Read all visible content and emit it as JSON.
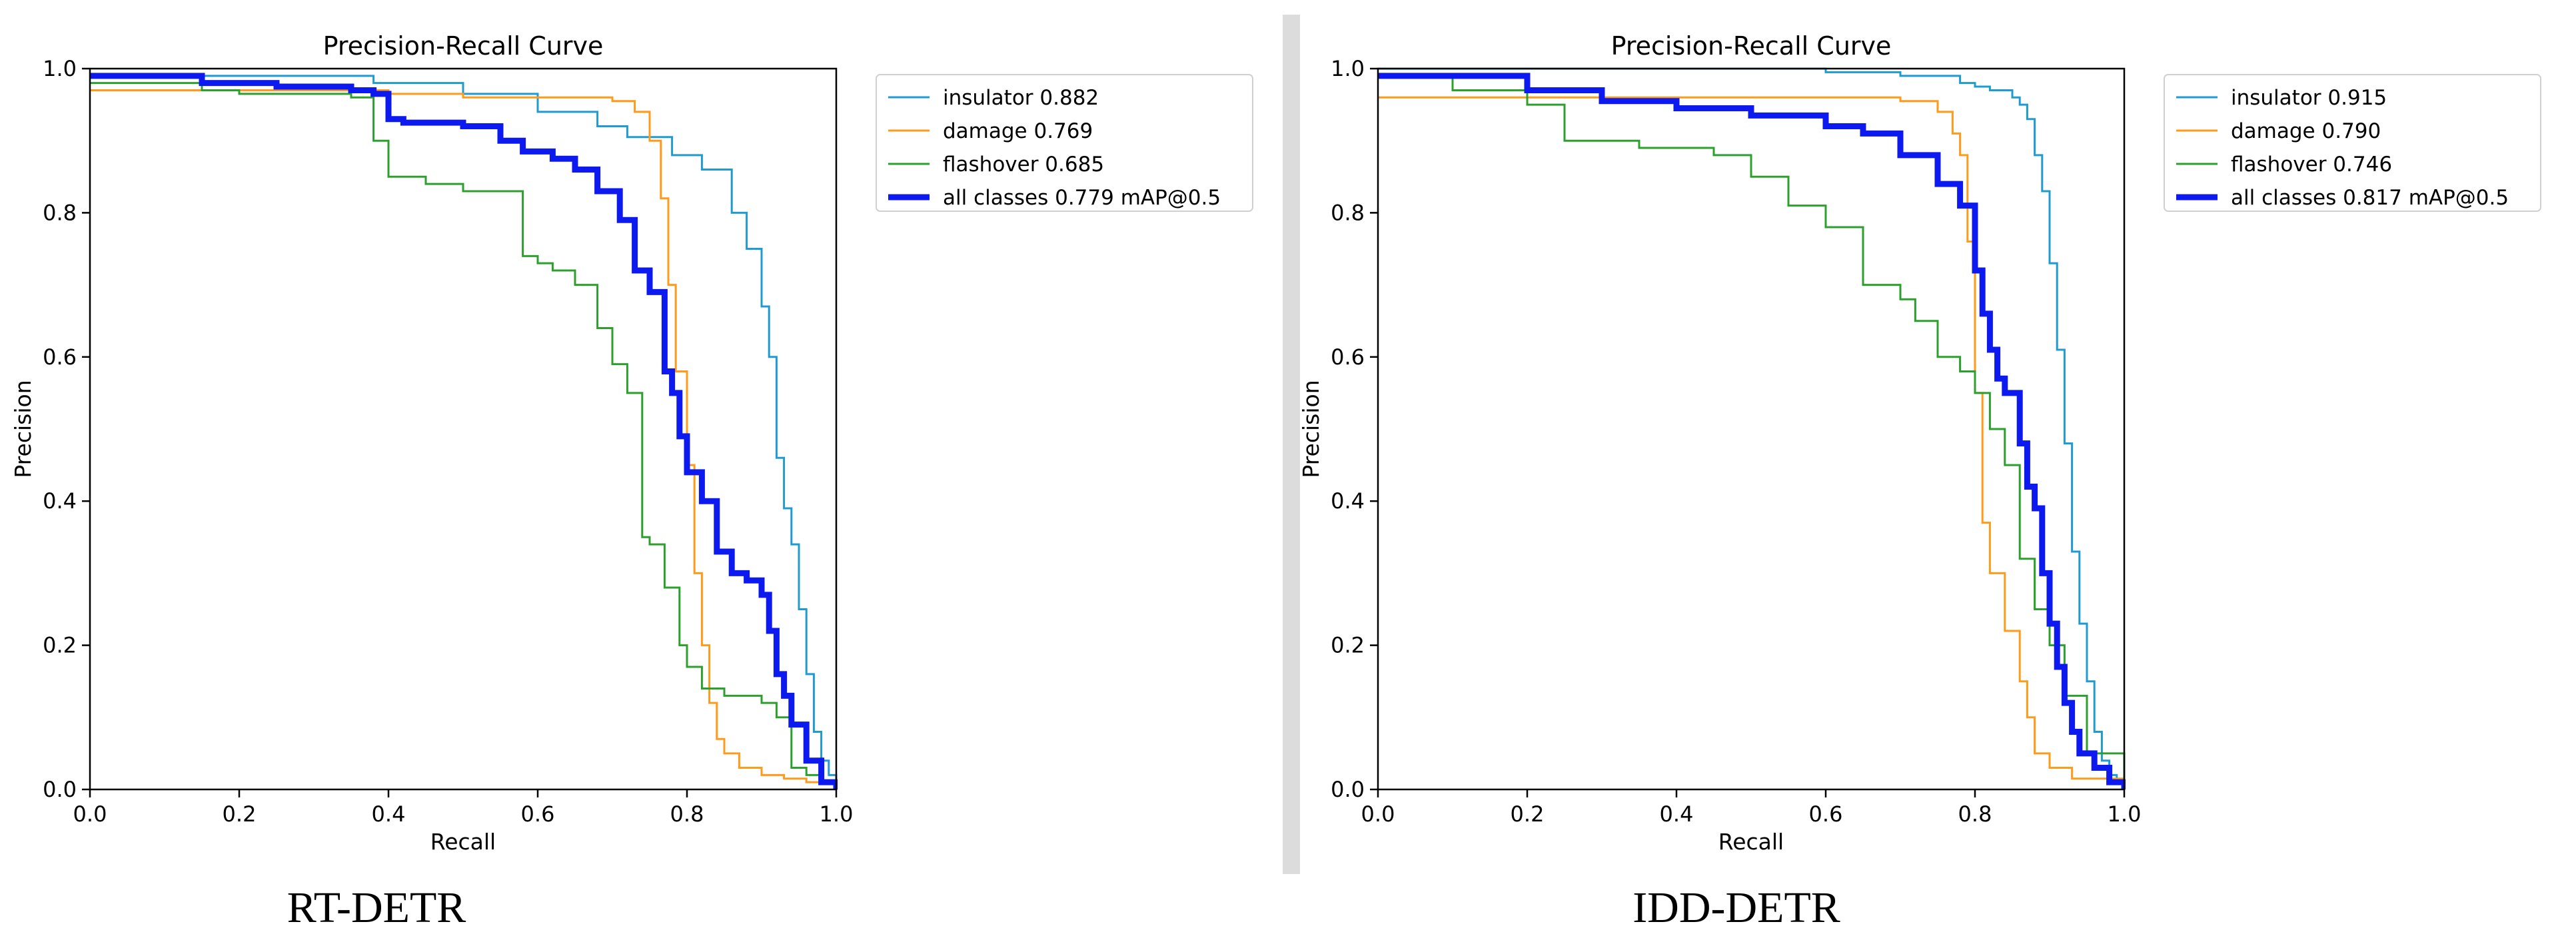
{
  "chart_data": [
    {
      "type": "line",
      "title": "Precision-Recall Curve",
      "xlabel": "Recall",
      "ylabel": "Precision",
      "xlim": [
        0,
        1
      ],
      "ylim": [
        0,
        1
      ],
      "xticks": [
        "0.0",
        "0.2",
        "0.4",
        "0.6",
        "0.8",
        "1.0"
      ],
      "yticks": [
        "0.0",
        "0.2",
        "0.4",
        "0.6",
        "0.8",
        "1.0"
      ],
      "grid": false,
      "legend_position": "outside top-right",
      "caption": "RT-DETR",
      "series": [
        {
          "name": "insulator 0.882",
          "color": "#1f9bd2",
          "linewidth": "thin",
          "x": [
            0,
            0.38,
            0.5,
            0.6,
            0.68,
            0.72,
            0.78,
            0.82,
            0.86,
            0.88,
            0.9,
            0.91,
            0.92,
            0.93,
            0.94,
            0.95,
            0.96,
            0.97,
            0.98,
            0.99,
            1.0
          ],
          "y": [
            0.99,
            0.98,
            0.965,
            0.94,
            0.92,
            0.905,
            0.88,
            0.86,
            0.8,
            0.75,
            0.67,
            0.6,
            0.46,
            0.39,
            0.34,
            0.25,
            0.16,
            0.08,
            0.04,
            0.02,
            0.0
          ]
        },
        {
          "name": "damage 0.769",
          "color": "#ff9a1a",
          "linewidth": "thin",
          "x": [
            0,
            0.15,
            0.4,
            0.5,
            0.6,
            0.65,
            0.7,
            0.73,
            0.75,
            0.765,
            0.775,
            0.785,
            0.8,
            0.81,
            0.82,
            0.83,
            0.84,
            0.85,
            0.87,
            0.9,
            0.93,
            0.96,
            1.0
          ],
          "y": [
            0.97,
            0.97,
            0.965,
            0.96,
            0.96,
            0.96,
            0.955,
            0.94,
            0.9,
            0.82,
            0.7,
            0.58,
            0.45,
            0.3,
            0.2,
            0.12,
            0.07,
            0.05,
            0.03,
            0.02,
            0.015,
            0.01,
            0.0
          ]
        },
        {
          "name": "flashover 0.685",
          "color": "#2ca02c",
          "linewidth": "thin",
          "x": [
            0,
            0.15,
            0.2,
            0.35,
            0.38,
            0.4,
            0.45,
            0.5,
            0.55,
            0.58,
            0.6,
            0.62,
            0.65,
            0.68,
            0.7,
            0.72,
            0.74,
            0.75,
            0.77,
            0.79,
            0.8,
            0.82,
            0.85,
            0.9,
            0.92,
            0.94,
            0.96,
            0.98,
            1.0
          ],
          "y": [
            0.98,
            0.97,
            0.965,
            0.96,
            0.9,
            0.85,
            0.84,
            0.83,
            0.83,
            0.74,
            0.73,
            0.72,
            0.7,
            0.64,
            0.59,
            0.55,
            0.35,
            0.34,
            0.28,
            0.2,
            0.17,
            0.14,
            0.13,
            0.12,
            0.1,
            0.03,
            0.02,
            0.01,
            0.0
          ]
        },
        {
          "name": "all classes 0.779 mAP@0.5",
          "color": "#0d1aef",
          "linewidth": "thick",
          "x": [
            0,
            0.15,
            0.25,
            0.35,
            0.38,
            0.4,
            0.42,
            0.5,
            0.55,
            0.58,
            0.62,
            0.65,
            0.68,
            0.71,
            0.73,
            0.75,
            0.77,
            0.78,
            0.79,
            0.8,
            0.82,
            0.84,
            0.86,
            0.88,
            0.9,
            0.91,
            0.92,
            0.93,
            0.94,
            0.96,
            0.98,
            1.0
          ],
          "y": [
            0.99,
            0.98,
            0.975,
            0.97,
            0.965,
            0.93,
            0.925,
            0.92,
            0.9,
            0.885,
            0.875,
            0.86,
            0.83,
            0.79,
            0.72,
            0.69,
            0.58,
            0.55,
            0.49,
            0.44,
            0.4,
            0.33,
            0.3,
            0.29,
            0.27,
            0.22,
            0.16,
            0.13,
            0.09,
            0.04,
            0.01,
            0.0
          ]
        }
      ]
    },
    {
      "type": "line",
      "title": "Precision-Recall Curve",
      "xlabel": "Recall",
      "ylabel": "Precision",
      "xlim": [
        0,
        1
      ],
      "ylim": [
        0,
        1
      ],
      "xticks": [
        "0.0",
        "0.2",
        "0.4",
        "0.6",
        "0.8",
        "1.0"
      ],
      "yticks": [
        "0.0",
        "0.2",
        "0.4",
        "0.6",
        "0.8",
        "1.0"
      ],
      "grid": false,
      "legend_position": "outside top-right",
      "caption": "IDD-DETR",
      "series": [
        {
          "name": "insulator 0.915",
          "color": "#1f9bd2",
          "linewidth": "thin",
          "x": [
            0,
            0.4,
            0.6,
            0.7,
            0.78,
            0.8,
            0.82,
            0.85,
            0.86,
            0.87,
            0.88,
            0.89,
            0.9,
            0.91,
            0.92,
            0.93,
            0.94,
            0.95,
            0.96,
            0.97,
            0.98,
            0.99,
            1.0
          ],
          "y": [
            1.0,
            1.0,
            0.995,
            0.99,
            0.98,
            0.975,
            0.97,
            0.96,
            0.95,
            0.93,
            0.88,
            0.83,
            0.73,
            0.61,
            0.48,
            0.33,
            0.23,
            0.15,
            0.08,
            0.04,
            0.02,
            0.01,
            0.0
          ]
        },
        {
          "name": "damage 0.790",
          "color": "#ff9a1a",
          "linewidth": "thin",
          "x": [
            0,
            0.3,
            0.5,
            0.6,
            0.7,
            0.75,
            0.77,
            0.78,
            0.79,
            0.8,
            0.81,
            0.82,
            0.84,
            0.86,
            0.87,
            0.88,
            0.9,
            0.93,
            1.0
          ],
          "y": [
            0.96,
            0.96,
            0.96,
            0.96,
            0.955,
            0.94,
            0.91,
            0.88,
            0.76,
            0.55,
            0.37,
            0.3,
            0.22,
            0.15,
            0.1,
            0.05,
            0.03,
            0.015,
            0.0
          ]
        },
        {
          "name": "flashover 0.746",
          "color": "#2ca02c",
          "linewidth": "thin",
          "x": [
            0,
            0.1,
            0.2,
            0.25,
            0.35,
            0.45,
            0.5,
            0.55,
            0.6,
            0.65,
            0.7,
            0.72,
            0.75,
            0.78,
            0.8,
            0.82,
            0.84,
            0.86,
            0.88,
            0.9,
            0.92,
            0.95,
            1.0
          ],
          "y": [
            0.99,
            0.97,
            0.95,
            0.9,
            0.89,
            0.88,
            0.85,
            0.81,
            0.78,
            0.7,
            0.68,
            0.65,
            0.6,
            0.58,
            0.55,
            0.5,
            0.45,
            0.32,
            0.25,
            0.2,
            0.13,
            0.05,
            0.0
          ]
        },
        {
          "name": "all classes 0.817 mAP@0.5",
          "color": "#0d1aef",
          "linewidth": "thick",
          "x": [
            0,
            0.15,
            0.2,
            0.3,
            0.4,
            0.5,
            0.6,
            0.65,
            0.7,
            0.75,
            0.78,
            0.8,
            0.81,
            0.82,
            0.83,
            0.84,
            0.86,
            0.87,
            0.88,
            0.89,
            0.9,
            0.91,
            0.92,
            0.93,
            0.94,
            0.96,
            0.98,
            1.0
          ],
          "y": [
            0.99,
            0.99,
            0.97,
            0.955,
            0.945,
            0.935,
            0.92,
            0.91,
            0.88,
            0.84,
            0.81,
            0.72,
            0.66,
            0.61,
            0.57,
            0.55,
            0.48,
            0.42,
            0.39,
            0.3,
            0.23,
            0.17,
            0.12,
            0.08,
            0.05,
            0.03,
            0.01,
            0.0
          ]
        }
      ]
    }
  ]
}
